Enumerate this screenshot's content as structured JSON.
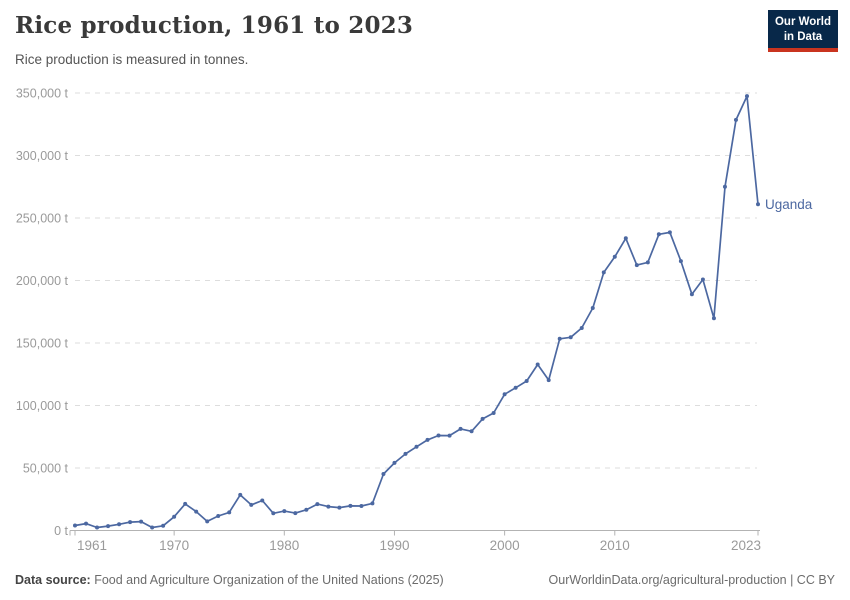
{
  "header": {
    "title": "Rice production, 1961 to 2023",
    "subtitle": "Rice production is measured in tonnes."
  },
  "logo": {
    "line1": "Our World",
    "line2": "in Data"
  },
  "entity_label": "Uganda",
  "colors": {
    "line": "#4c68a1",
    "grid": "#dddddd",
    "axis": "#b3b3b3",
    "tick_label": "#9a9a9a",
    "title": "#3a3a3a",
    "subtitle": "#555555",
    "footer": "#6c6c6c",
    "logo_bg": "#082849",
    "logo_accent": "#c9341f"
  },
  "chart_data": {
    "type": "line",
    "title": "Rice production, 1961 to 2023",
    "subtitle": "Rice production is measured in tonnes.",
    "unit": "tonnes",
    "xlabel": "",
    "ylabel": "",
    "ylim": [
      0,
      350000
    ],
    "yticks": [
      0,
      50000,
      100000,
      150000,
      200000,
      250000,
      300000,
      350000
    ],
    "ytick_labels": [
      "0 t",
      "50,000 t",
      "100,000 t",
      "150,000 t",
      "200,000 t",
      "250,000 t",
      "300,000 t",
      "350,000 t"
    ],
    "xticks": [
      1961,
      1970,
      1980,
      1990,
      2000,
      2010,
      2023
    ],
    "xtick_labels": [
      "1961",
      "1970",
      "1980",
      "1990",
      "2000",
      "2010",
      "2023"
    ],
    "grid": "horizontal-dashed",
    "legend": "end-of-line-label",
    "x": [
      1961,
      1962,
      1963,
      1964,
      1965,
      1966,
      1967,
      1968,
      1969,
      1970,
      1971,
      1972,
      1973,
      1974,
      1975,
      1976,
      1977,
      1978,
      1979,
      1980,
      1981,
      1982,
      1983,
      1984,
      1985,
      1986,
      1987,
      1988,
      1989,
      1990,
      1991,
      1992,
      1993,
      1994,
      1995,
      1996,
      1997,
      1998,
      1999,
      2000,
      2001,
      2002,
      2003,
      2004,
      2005,
      2006,
      2007,
      2008,
      2009,
      2010,
      2011,
      2012,
      2013,
      2014,
      2015,
      2016,
      2017,
      2018,
      2019,
      2020,
      2021,
      2022,
      2023
    ],
    "series": [
      {
        "name": "Uganda",
        "values": [
          4000,
          5500,
          2400,
          3500,
          5000,
          6700,
          7100,
          2400,
          3800,
          11000,
          21300,
          15100,
          7300,
          11600,
          14500,
          28500,
          20500,
          24000,
          13800,
          15500,
          13900,
          16600,
          21100,
          19100,
          18300,
          19700,
          19600,
          21700,
          45200,
          54100,
          61300,
          67000,
          72500,
          76000,
          75900,
          81300,
          79400,
          89300,
          94000,
          109000,
          114200,
          119600,
          132800,
          120300,
          153400,
          154600,
          162000,
          178000,
          206500,
          219000,
          233800,
          212300,
          214500,
          237000,
          238500,
          215500,
          189000,
          200800,
          169800,
          275000,
          328500,
          347500,
          261000
        ]
      }
    ]
  },
  "footer": {
    "source_label": "Data source:",
    "source_text": " Food and Agriculture Organization of the United Nations (2025)",
    "right_text": "OurWorldinData.org/agricultural-production | CC BY"
  }
}
